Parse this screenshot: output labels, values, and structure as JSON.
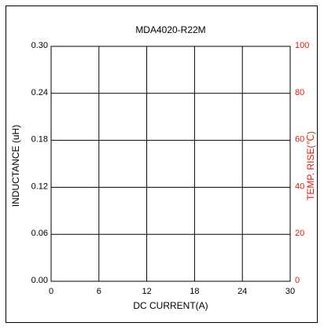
{
  "chart_data": {
    "type": "line",
    "title": "MDA4020-R22M",
    "xlabel": "DC CURRENT(A)",
    "ylabel": "INDUCTANCE (uH)",
    "y2label": "TEMP. RISE(℃)",
    "xlim": [
      0,
      30
    ],
    "ylim": [
      0.0,
      0.3
    ],
    "y2lim": [
      0,
      100
    ],
    "x_ticks": [
      "0",
      "6",
      "12",
      "18",
      "24",
      "30"
    ],
    "y_ticks": [
      "0.00",
      "0.06",
      "0.12",
      "0.18",
      "0.24",
      "0.30"
    ],
    "y2_ticks": [
      "0",
      "20",
      "40",
      "60",
      "80",
      "100"
    ],
    "grid": true,
    "series": [],
    "colors": {
      "axis": "#000000",
      "grid": "#000000",
      "left_axis_text": "#000000",
      "right_axis_text": "#e8190c"
    }
  }
}
